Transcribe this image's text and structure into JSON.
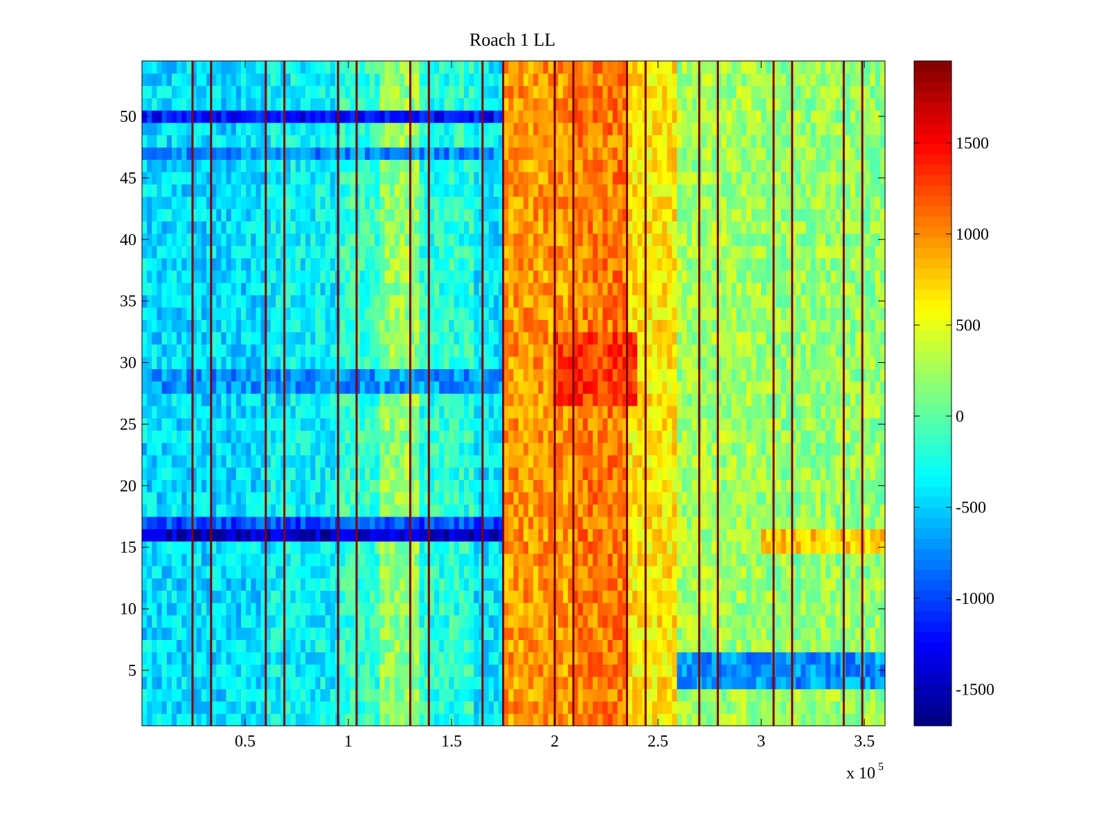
{
  "chart_data": {
    "type": "heatmap",
    "title": "Roach 1 LL",
    "xlabel": "",
    "ylabel": "",
    "x_range": [
      0,
      360000
    ],
    "y_range": [
      0.5,
      54.5
    ],
    "n_rows": 54,
    "x_ticks": [
      50000,
      100000,
      150000,
      200000,
      250000,
      300000,
      350000
    ],
    "x_tick_labels": [
      "0.5",
      "1",
      "1.5",
      "2",
      "2.5",
      "3",
      "3.5"
    ],
    "x_exponent_label": "x 10",
    "x_exponent": "5",
    "y_ticks": [
      5,
      10,
      15,
      20,
      25,
      30,
      35,
      40,
      45,
      50
    ],
    "y_tick_labels": [
      "5",
      "10",
      "15",
      "20",
      "25",
      "30",
      "35",
      "40",
      "45",
      "50"
    ],
    "colorbar": {
      "colormap": "jet",
      "range": [
        -1700,
        1950
      ],
      "ticks": [
        -1500,
        -1000,
        -500,
        0,
        500,
        1000,
        1500
      ],
      "tick_labels": [
        "-1500",
        "-1000",
        "-500",
        "0",
        "500",
        "1000",
        "1500"
      ]
    },
    "time_segments": [
      {
        "x_start": 0,
        "x_end": 60000,
        "value": -450
      },
      {
        "x_start": 60000,
        "x_end": 95000,
        "value": -350
      },
      {
        "x_start": 95000,
        "x_end": 115000,
        "value": -150
      },
      {
        "x_start": 115000,
        "x_end": 135000,
        "value": 200
      },
      {
        "x_start": 135000,
        "x_end": 160000,
        "value": -200
      },
      {
        "x_start": 160000,
        "x_end": 175000,
        "value": -400
      },
      {
        "x_start": 175000,
        "x_end": 210000,
        "value": 950
      },
      {
        "x_start": 210000,
        "x_end": 235000,
        "value": 1050
      },
      {
        "x_start": 235000,
        "x_end": 260000,
        "value": 650
      },
      {
        "x_start": 260000,
        "x_end": 300000,
        "value": 250
      },
      {
        "x_start": 300000,
        "x_end": 360000,
        "value": 200
      }
    ],
    "row_bands": [
      {
        "rows": [
          50,
          50
        ],
        "x_end": 175000,
        "value": -1200
      },
      {
        "rows": [
          47,
          47
        ],
        "x_end": 175000,
        "value": -750
      },
      {
        "rows": [
          28,
          29
        ],
        "x_end": 175000,
        "value": -700
      },
      {
        "rows": [
          27,
          32
        ],
        "x_start": 200000,
        "x_end": 240000,
        "value": 1300
      },
      {
        "rows": [
          16,
          16
        ],
        "x_end": 175000,
        "value": -1450
      },
      {
        "rows": [
          17,
          17
        ],
        "x_end": 175000,
        "value": -1000
      },
      {
        "rows": [
          15,
          16
        ],
        "x_start": 300000,
        "x_end": 360000,
        "value": 750
      },
      {
        "rows": [
          4,
          6
        ],
        "x_start": 260000,
        "x_end": 360000,
        "value": -700
      }
    ],
    "stripe_lines_x": [
      24500,
      33500,
      60000,
      69000,
      95000,
      104000,
      130000,
      139000,
      165000,
      175000,
      200000,
      209000,
      235000,
      244000,
      270000,
      279000,
      306000,
      315000,
      340000,
      349000
    ]
  }
}
